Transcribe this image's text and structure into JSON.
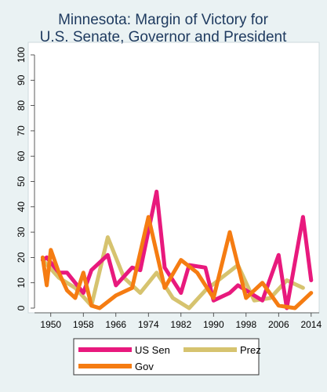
{
  "chart_data": {
    "type": "line",
    "title": [
      "Minnesota: Margin of Victory for",
      "U.S. Senate, Governor and President"
    ],
    "xlabel": "",
    "ylabel": "",
    "xlim": [
      1946,
      2015
    ],
    "ylim": [
      0,
      100
    ],
    "xticks": [
      1950,
      1958,
      1966,
      1974,
      1982,
      1990,
      1998,
      2006,
      2014
    ],
    "yticks": [
      0,
      10,
      20,
      30,
      40,
      50,
      60,
      70,
      80,
      90,
      100
    ],
    "grid": false,
    "legend_position": "bottom",
    "series": [
      {
        "name": "US Sen",
        "color": "#e8197d",
        "x": [
          1948,
          1949,
          1952,
          1954,
          1958,
          1960,
          1964,
          1966,
          1970,
          1972,
          1976,
          1978,
          1982,
          1984,
          1988,
          1990,
          1994,
          1996,
          2000,
          2002,
          2006,
          2008,
          2012,
          2014
        ],
        "values": [
          19,
          20,
          14,
          14,
          6,
          15,
          21,
          9,
          16,
          15,
          46,
          16,
          6,
          17,
          16,
          3,
          6,
          9,
          5,
          3,
          21,
          0,
          36,
          11
        ]
      },
      {
        "name": "Prez",
        "color": "#d6c36f",
        "x": [
          1948,
          1952,
          1956,
          1960,
          1964,
          1968,
          1972,
          1976,
          1980,
          1984,
          1988,
          1992,
          1996,
          2000,
          2004,
          2008,
          2012
        ],
        "values": [
          19,
          12,
          8,
          1,
          28,
          12,
          6,
          14,
          4,
          0,
          7,
          12,
          17,
          3,
          4,
          11,
          8
        ]
      },
      {
        "name": "Gov",
        "color": "#f57c12",
        "x": [
          1948,
          1949,
          1950,
          1952,
          1954,
          1956,
          1958,
          1960,
          1962,
          1966,
          1970,
          1974,
          1978,
          1982,
          1986,
          1990,
          1994,
          1998,
          2002,
          2006,
          2010,
          2014
        ],
        "values": [
          20,
          9,
          23,
          14,
          7,
          4,
          14,
          1,
          0,
          5,
          8,
          36,
          8,
          19,
          14,
          4,
          30,
          4,
          10,
          1,
          0,
          6
        ]
      }
    ]
  }
}
